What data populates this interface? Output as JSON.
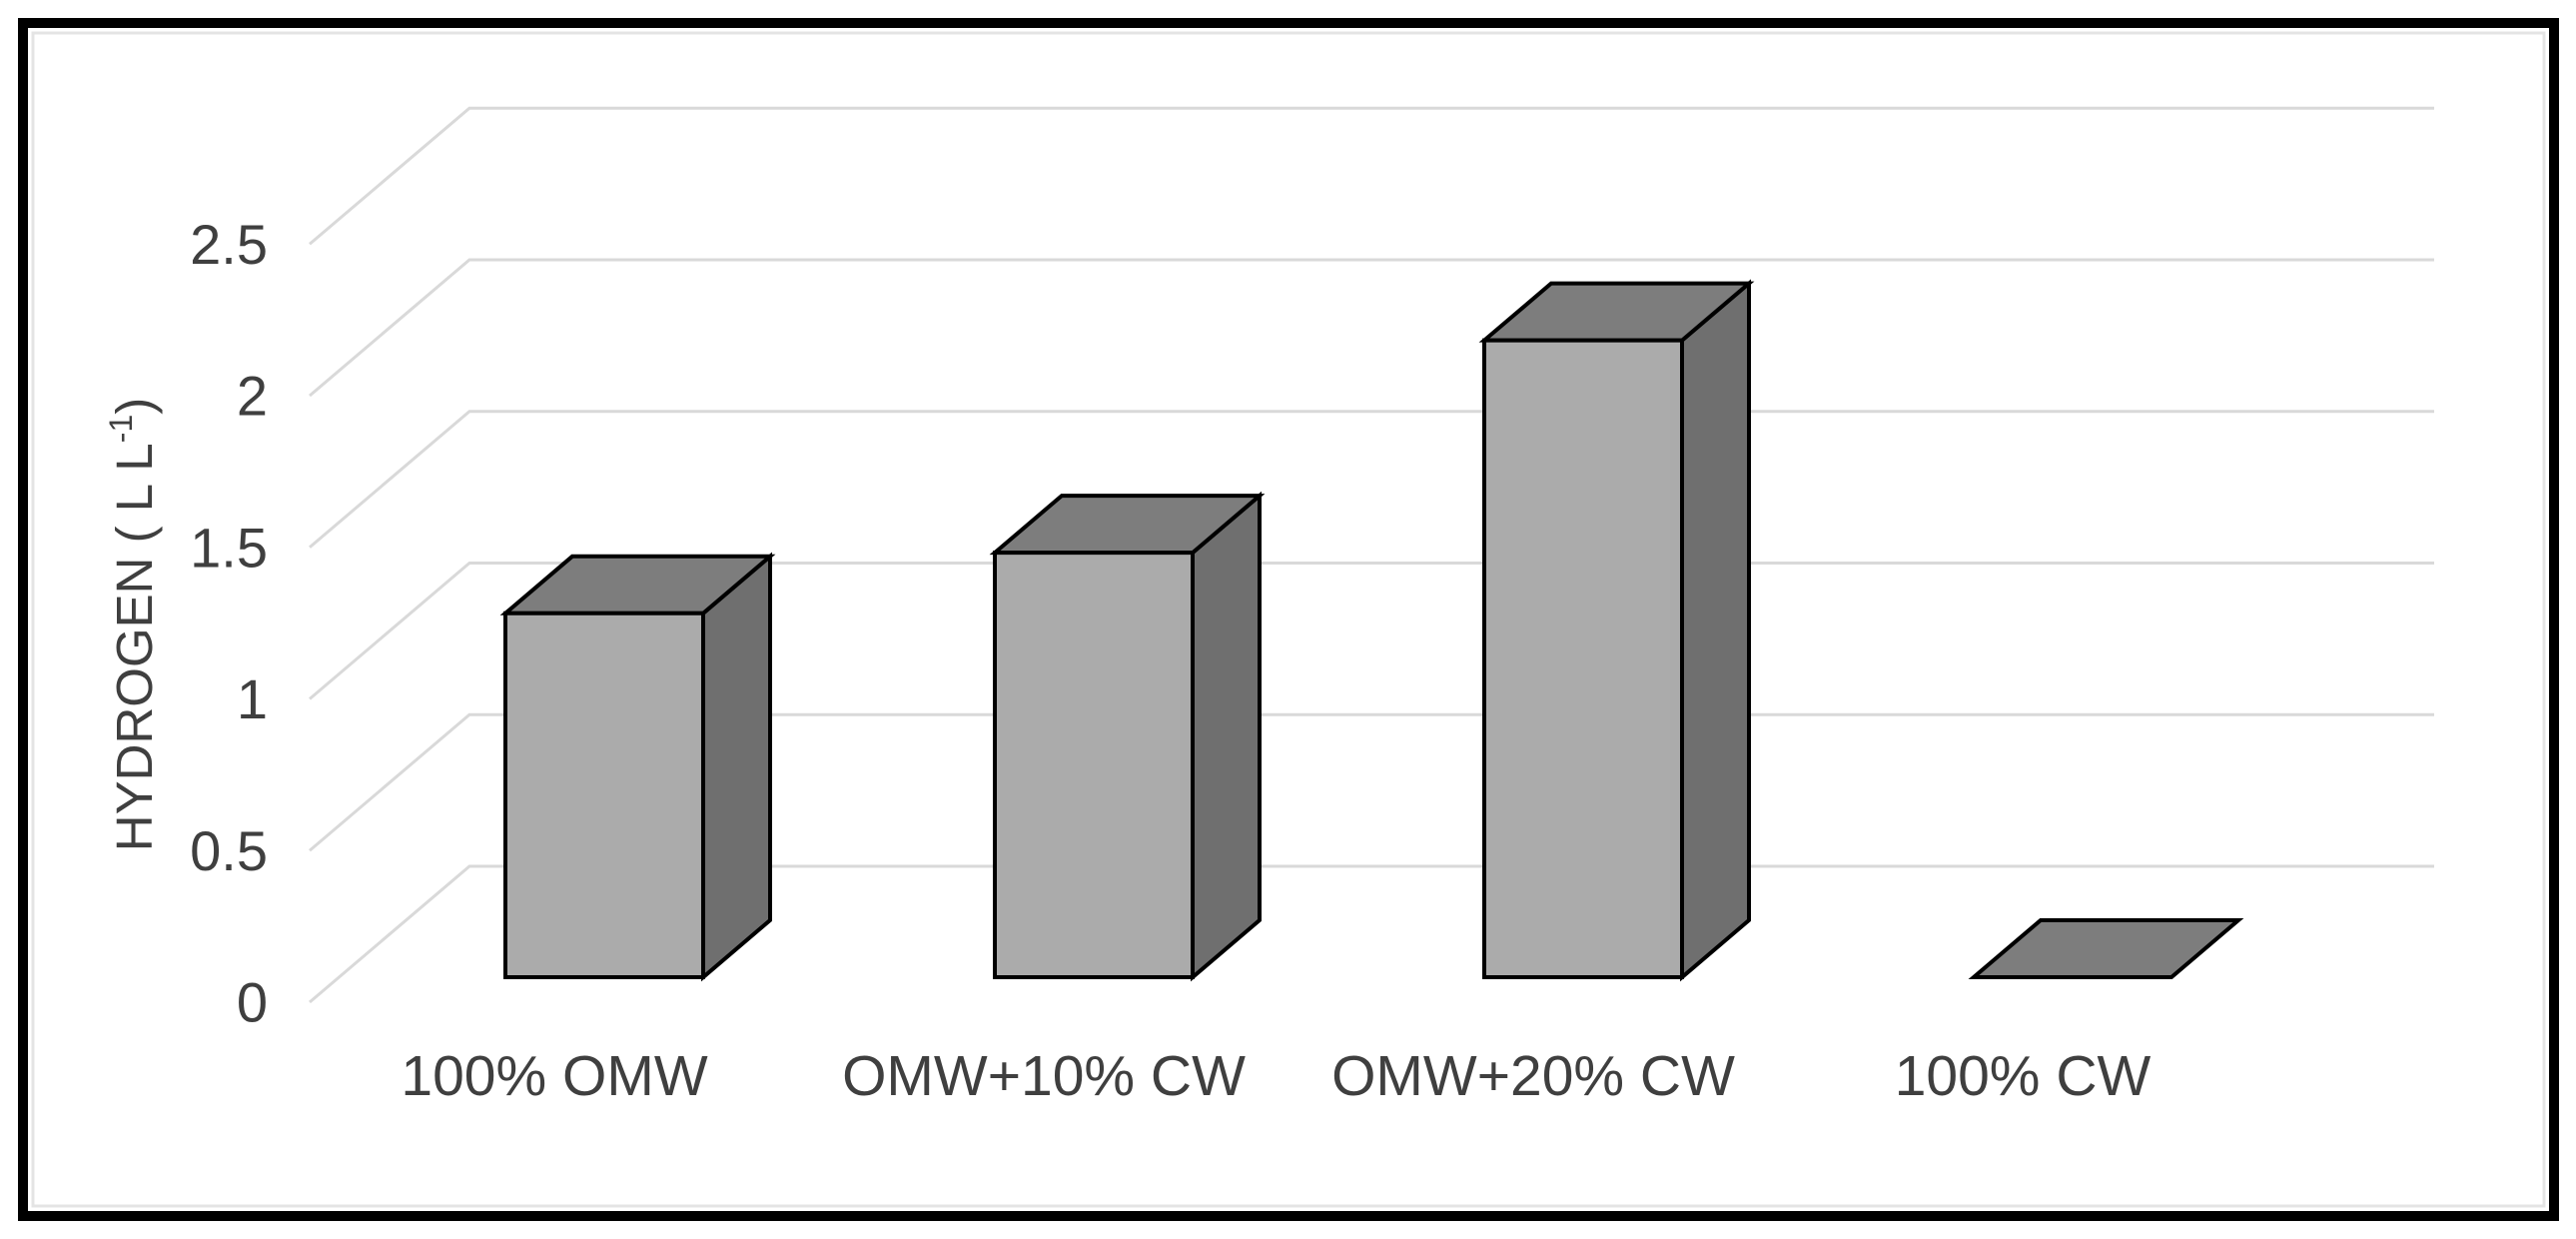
{
  "figure": {
    "background": "#ffffff",
    "frame_border_color": "#000000",
    "inner_edge_color": "#e4e4e4"
  },
  "chart_data": {
    "type": "bar",
    "variant": "3d-column-single-series",
    "title": "",
    "xlabel": "",
    "ylabel": "HYDROGEN ( L L-1)",
    "ylabel_base": "HYDROGEN ( L L",
    "ylabel_superscript": "-1",
    "ylabel_suffix": ")",
    "categories": [
      "100% OMW",
      "OMW+10% CW",
      "OMW+20% CW",
      "100% CW"
    ],
    "values": [
      1.2,
      1.4,
      2.1,
      0
    ],
    "ytick_values": [
      0,
      0.5,
      1,
      1.5,
      2,
      2.5
    ],
    "yticks": [
      "0",
      "0.5",
      "1",
      "1.5",
      "2",
      "2.5"
    ],
    "ylim": [
      0,
      2.5
    ],
    "grid": "horizontal-3d-back-wall",
    "legend": "none",
    "colors": {
      "bar_front": "#ababab",
      "bar_top": "#7d7d7d",
      "bar_side": "#6f6f6f",
      "bar_outline": "#000000",
      "gridline": "#d9d9d9",
      "text": "#3f3f3f",
      "frame": "#000000",
      "background": "#ffffff"
    }
  }
}
